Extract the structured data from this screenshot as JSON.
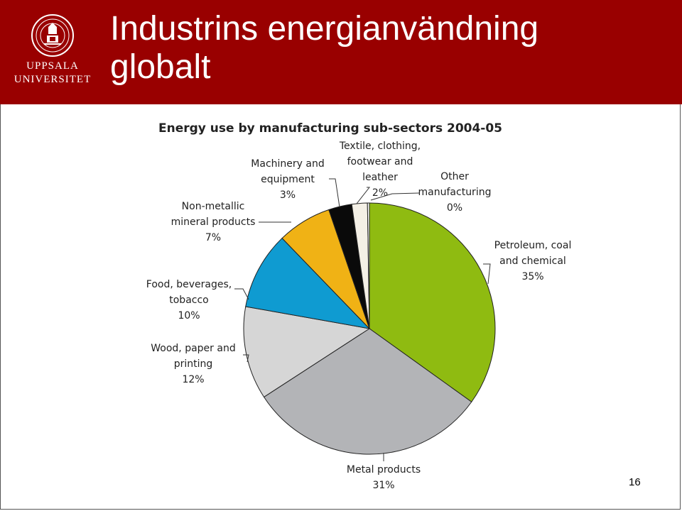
{
  "header": {
    "title_line1": "Industrins energianvändning",
    "title_line2": "globalt",
    "logo_line1": "UPPSALA",
    "logo_line2": "UNIVERSITET",
    "background": "#990000"
  },
  "page_number": "16",
  "chart_data": {
    "type": "pie",
    "title": "Energy use by manufacturing sub-sectors 2004-05",
    "slices": [
      {
        "label": [
          "Petroleum, coal",
          "and chemical",
          "35%"
        ],
        "value": 35,
        "color": "#8fbb11"
      },
      {
        "label": [
          "Metal products",
          "31%"
        ],
        "value": 31,
        "color": "#b3b4b7"
      },
      {
        "label": [
          "Wood, paper and",
          "printing",
          "12%"
        ],
        "value": 12,
        "color": "#d6d6d6"
      },
      {
        "label": [
          "Food, beverages,",
          "tobacco",
          "10%"
        ],
        "value": 10,
        "color": "#0f9bd1"
      },
      {
        "label": [
          "Non-metallic",
          "mineral products",
          "7%"
        ],
        "value": 7,
        "color": "#f0b215"
      },
      {
        "label": [
          "Machinery and",
          "equipment",
          "3%"
        ],
        "value": 3,
        "color": "#0a0a0a"
      },
      {
        "label": [
          "Textile, clothing,",
          "footwear and",
          "leather",
          "2%"
        ],
        "value": 2,
        "color": "#f4f0e6"
      },
      {
        "label": [
          "Other",
          "manufacturing",
          "0%"
        ],
        "value": 0.25,
        "color": "#ffffff"
      }
    ]
  }
}
